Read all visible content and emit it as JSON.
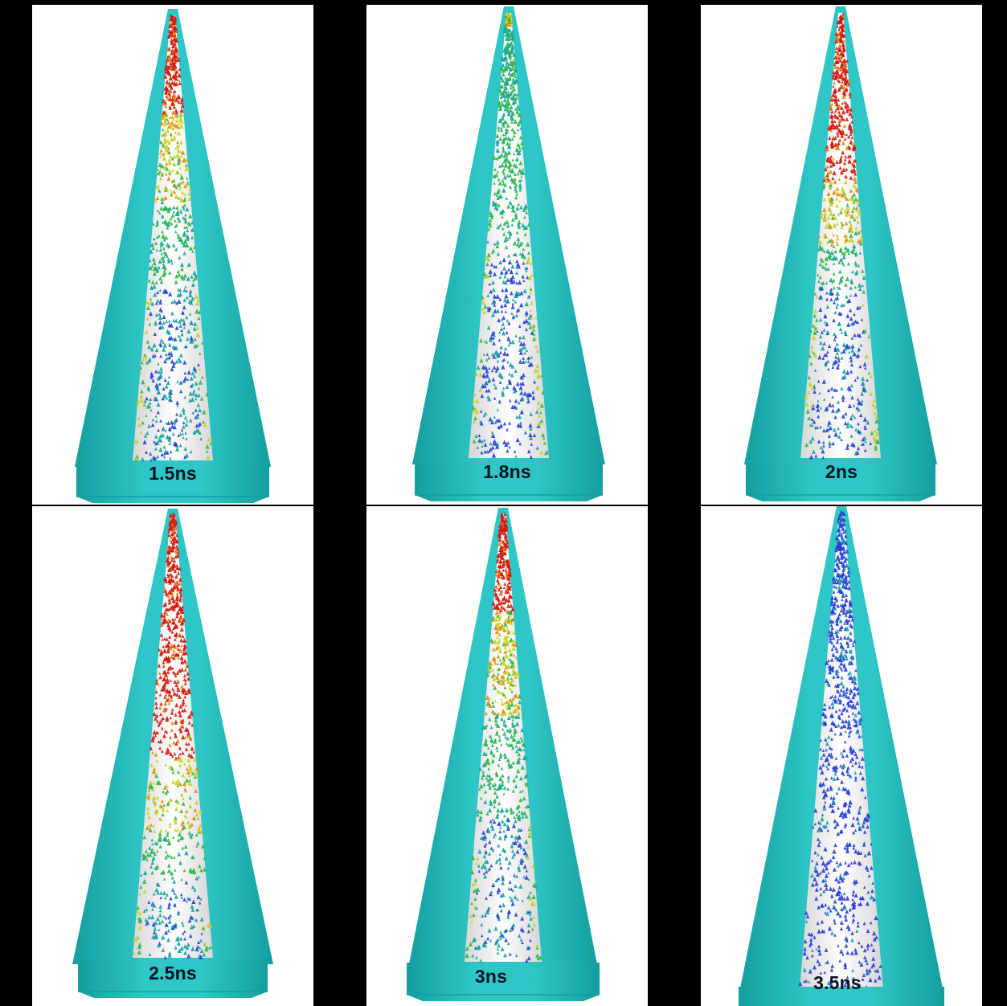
{
  "colors": {
    "shell": "#2ec6c6",
    "shell_dark": "#159e9e",
    "interior": "#f4f4f4",
    "high": "#d21a10",
    "mid_high": "#e08a12",
    "mid": "#c8d21e",
    "low": "#2fb84a",
    "lower": "#17a3a3",
    "lowest": "#2a3ed6"
  },
  "panels": [
    {
      "id": "p1",
      "label": "1.5ns",
      "red": 0.22,
      "yellow": 0.42,
      "green": 0.62,
      "blue": 0.0
    },
    {
      "id": "p2",
      "label": "1.8ns",
      "red": 0.0,
      "yellow": 0.03,
      "green": 0.55,
      "blue": 0.45
    },
    {
      "id": "p3",
      "label": "2ns",
      "red": 0.38,
      "yellow": 0.52,
      "green": 0.62,
      "blue": 0.45
    },
    {
      "id": "p4",
      "label": "2.5ns",
      "red": 0.55,
      "yellow": 0.72,
      "green": 0.82,
      "blue": 0.0
    },
    {
      "id": "p5",
      "label": "3ns",
      "red": 0.22,
      "yellow": 0.45,
      "green": 0.68,
      "blue": 0.0
    },
    {
      "id": "p6",
      "label": "3.5ns",
      "red": 0.0,
      "yellow": 0.0,
      "green": 0.0,
      "blue": 1.0
    }
  ]
}
